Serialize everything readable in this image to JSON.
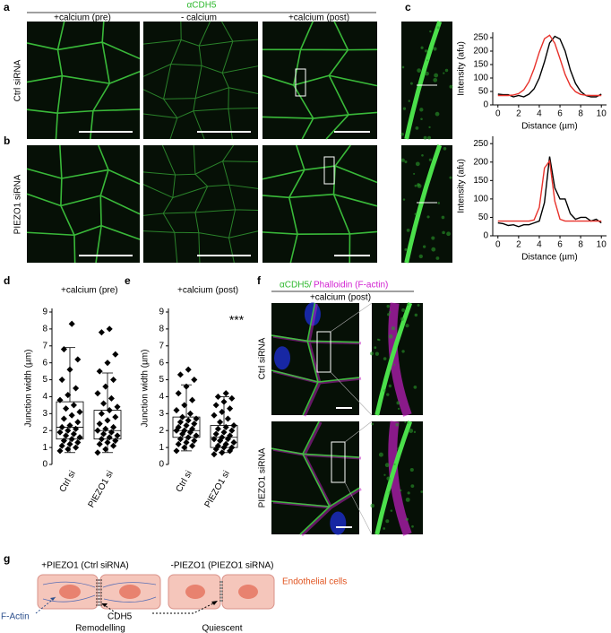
{
  "figure": {
    "panel_labels": {
      "a": "a",
      "b": "b",
      "c": "c",
      "d": "d",
      "e": "e",
      "f": "f",
      "g": "g"
    },
    "a": {
      "header": "αCDH5",
      "columns": [
        "+calcium (pre)",
        "- calcium",
        "+calcium (post)"
      ],
      "rows": [
        "Ctrl siRNA",
        "PIEZO1 siRNA"
      ]
    },
    "f": {
      "header_green": "αCDH5/",
      "header_magenta": "Phalloidin (F-actin)",
      "condition": "+calcium (post)",
      "rows": [
        "Ctrl siRNA",
        "PIEZO1 siRNA"
      ]
    },
    "g": {
      "left_title": "+PIEZO1 (Ctrl siRNA)",
      "right_title": "-PIEZO1 (PIEZO1 siRNA)",
      "cell_label": "Endothelial cells",
      "f_actin": "F-Actin",
      "cdh5": "CDH5",
      "left_state": "Remodelling",
      "right_state": "Quiescent"
    }
  },
  "chart_data": [
    {
      "type": "line",
      "xlabel": "Distance (µm)",
      "ylabel": "Intensity (afu)",
      "x": [
        0,
        0.5,
        1,
        1.5,
        2,
        2.5,
        3,
        3.5,
        4,
        4.5,
        5,
        5.5,
        6,
        6.5,
        7,
        7.5,
        8,
        8.5,
        9,
        9.5,
        10
      ],
      "series": [
        {
          "color": "#000000",
          "values": [
            40,
            38,
            38,
            30,
            35,
            30,
            40,
            60,
            100,
            160,
            230,
            255,
            245,
            200,
            130,
            80,
            50,
            35,
            30,
            30,
            40
          ]
        },
        {
          "color": "#e8312a",
          "values": [
            35,
            35,
            35,
            37,
            42,
            56,
            86,
            135,
            196,
            246,
            259,
            229,
            172,
            113,
            71,
            49,
            39,
            36,
            35,
            35,
            35
          ]
        }
      ],
      "xlim": [
        -0.5,
        10.5
      ],
      "ylim": [
        0,
        270
      ],
      "xticks": [
        0,
        2,
        4,
        6,
        8,
        10
      ],
      "yticks": [
        0,
        50,
        100,
        150,
        200,
        250
      ]
    },
    {
      "type": "line",
      "xlabel": "Distance (µm)",
      "ylabel": "Intensity (afu)",
      "x": [
        0,
        0.5,
        1,
        1.5,
        2,
        2.5,
        3,
        3.5,
        4,
        4.5,
        5,
        5.5,
        6,
        6.5,
        7,
        7.5,
        8,
        8.5,
        9,
        9.5,
        10
      ],
      "series": [
        {
          "color": "#000000",
          "values": [
            35,
            33,
            28,
            30,
            25,
            30,
            30,
            35,
            40,
            90,
            215,
            130,
            100,
            100,
            60,
            45,
            50,
            50,
            40,
            45,
            35
          ]
        },
        {
          "color": "#e8312a",
          "values": [
            40,
            40,
            40,
            40,
            40,
            40,
            40,
            43,
            77,
            184,
            203,
            94,
            45,
            40,
            40,
            40,
            40,
            40,
            40,
            40,
            40
          ]
        }
      ],
      "xlim": [
        -0.5,
        10.5
      ],
      "ylim": [
        0,
        270
      ],
      "xticks": [
        0,
        2,
        4,
        6,
        8,
        10
      ],
      "yticks": [
        0,
        50,
        100,
        150,
        200,
        250
      ]
    },
    {
      "type": "box",
      "title": "+calcium (pre)",
      "ylabel": "Junction width (µm)",
      "categories": [
        "Ctrl si",
        "PIEZO1 si"
      ],
      "ylim": [
        0,
        9
      ],
      "yticks": [
        0,
        1,
        2,
        3,
        4,
        5,
        6,
        7,
        8,
        9
      ],
      "boxes": [
        {
          "whislo": 0.7,
          "q1": 1.5,
          "med": 2.2,
          "q3": 3.7,
          "whishi": 6.9,
          "points": [
            0.8,
            0.9,
            1.0,
            1.1,
            1.2,
            1.3,
            1.4,
            1.5,
            1.6,
            1.7,
            1.8,
            1.9,
            2.0,
            2.1,
            2.2,
            2.3,
            2.5,
            2.7,
            2.9,
            3.1,
            3.3,
            3.5,
            3.8,
            4.1,
            4.5,
            5.0,
            5.6,
            6.2,
            6.8,
            8.3
          ]
        },
        {
          "whislo": 0.7,
          "q1": 1.5,
          "med": 2.0,
          "q3": 3.2,
          "whishi": 5.4,
          "points": [
            0.7,
            0.9,
            1.1,
            1.2,
            1.3,
            1.4,
            1.5,
            1.6,
            1.7,
            1.8,
            1.9,
            2.0,
            2.1,
            2.2,
            2.4,
            2.6,
            2.8,
            3.0,
            3.2,
            3.4,
            3.6,
            3.9,
            4.2,
            4.6,
            5.0,
            5.5,
            6.0,
            6.5,
            7.8,
            8.0
          ]
        }
      ]
    },
    {
      "type": "box",
      "title": "+calcium (post)",
      "ylabel": "Junction width (µm)",
      "categories": [
        "Ctrl si",
        "PIEZO1 si"
      ],
      "annotation": "***",
      "ylim": [
        0,
        9
      ],
      "yticks": [
        0,
        1,
        2,
        3,
        4,
        5,
        6,
        7,
        8,
        9
      ],
      "boxes": [
        {
          "whislo": 0.8,
          "q1": 1.6,
          "med": 2.0,
          "q3": 2.8,
          "whishi": 4.7,
          "points": [
            0.8,
            1.0,
            1.1,
            1.2,
            1.3,
            1.4,
            1.5,
            1.6,
            1.7,
            1.8,
            1.9,
            2.0,
            2.0,
            2.1,
            2.2,
            2.3,
            2.4,
            2.5,
            2.6,
            2.7,
            2.8,
            3.0,
            3.2,
            3.5,
            3.8,
            4.2,
            4.6,
            5.0,
            5.3,
            5.6
          ]
        },
        {
          "whislo": 0.7,
          "q1": 1.0,
          "med": 1.6,
          "q3": 2.3,
          "whishi": 4.0,
          "points": [
            0.6,
            0.7,
            0.8,
            0.9,
            1.0,
            1.0,
            1.1,
            1.2,
            1.3,
            1.4,
            1.5,
            1.5,
            1.6,
            1.7,
            1.8,
            1.9,
            2.0,
            2.1,
            2.2,
            2.3,
            2.5,
            2.7,
            2.9,
            3.1,
            3.3,
            3.5,
            3.7,
            3.9,
            4.0,
            4.2
          ]
        }
      ]
    }
  ]
}
